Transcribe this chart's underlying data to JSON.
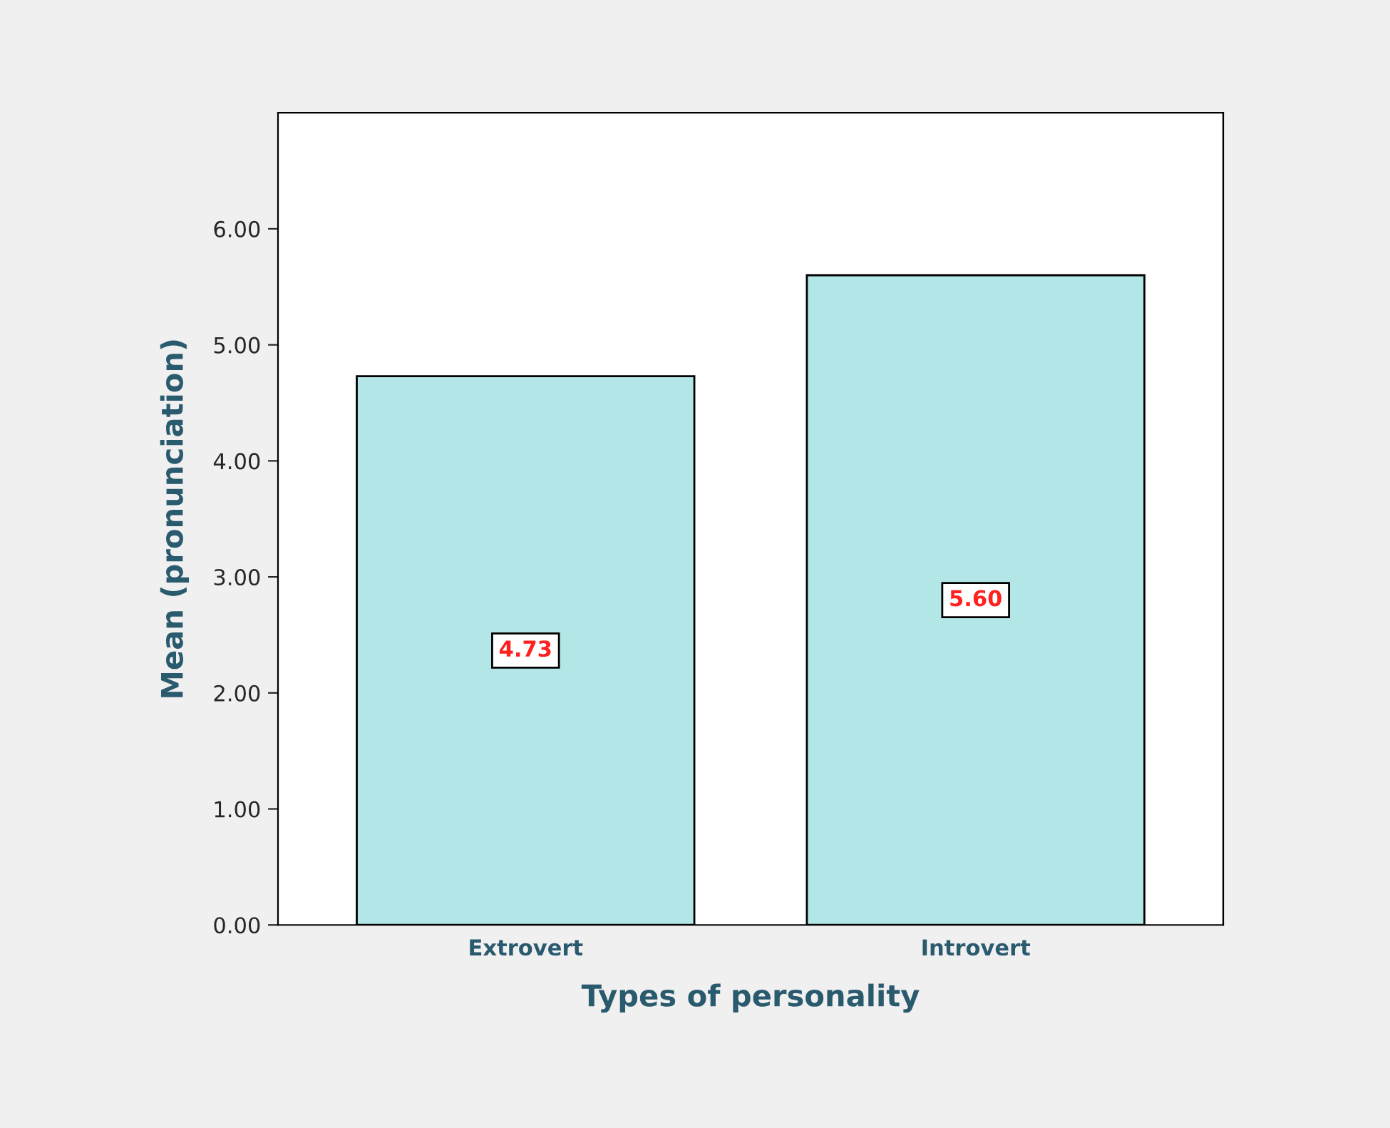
{
  "chart_data": {
    "type": "bar",
    "xlabel": "Types of personality",
    "ylabel": "Mean (pronunciation)",
    "categories": [
      "Extrovert",
      "Introvert"
    ],
    "values": [
      4.73,
      5.6
    ],
    "color": "#b3e6e6",
    "value_labels": [
      "4.73",
      "5.60"
    ],
    "ylim": [
      0,
      7
    ],
    "yticks": [
      {
        "value": 0,
        "label": "0.00"
      },
      {
        "value": 1,
        "label": "1.00"
      },
      {
        "value": 2,
        "label": "2.00"
      },
      {
        "value": 3,
        "label": "3.00"
      },
      {
        "value": 4,
        "label": "4.00"
      },
      {
        "value": 5,
        "label": "5.00"
      },
      {
        "value": 6,
        "label": "6.00"
      }
    ],
    "grid": false,
    "legend": false
  }
}
